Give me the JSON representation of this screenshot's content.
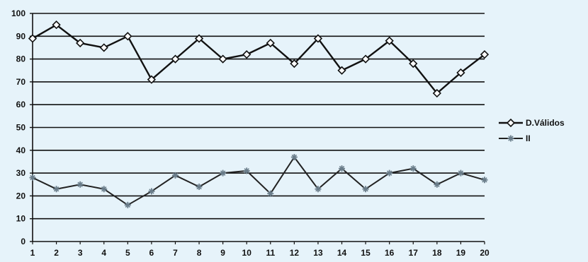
{
  "chart_data": {
    "type": "line",
    "x": [
      1,
      2,
      3,
      4,
      5,
      6,
      7,
      8,
      9,
      10,
      11,
      12,
      13,
      14,
      15,
      16,
      17,
      18,
      19,
      20
    ],
    "categories": [
      "1",
      "2",
      "3",
      "4",
      "5",
      "6",
      "7",
      "8",
      "9",
      "10",
      "11",
      "12",
      "13",
      "14",
      "15",
      "16",
      "17",
      "18",
      "19",
      "20"
    ],
    "series": [
      {
        "name": "D.Válidos",
        "values": [
          89,
          95,
          87,
          85,
          90,
          71,
          80,
          89,
          80,
          82,
          87,
          78,
          89,
          75,
          80,
          88,
          78,
          65,
          74,
          82
        ],
        "color": "#111111",
        "marker": "diamond"
      },
      {
        "name": "II",
        "values": [
          28,
          23,
          25,
          23,
          16,
          22,
          29,
          24,
          30,
          31,
          21,
          37,
          23,
          32,
          23,
          30,
          32,
          25,
          30,
          27
        ],
        "color": "#222222",
        "marker": "star"
      }
    ],
    "title": "",
    "xlabel": "",
    "ylabel": "",
    "ylim": [
      0,
      100
    ],
    "yticks": [
      "0",
      "10",
      "20",
      "30",
      "40",
      "50",
      "60",
      "70",
      "80",
      "90",
      "100"
    ],
    "grid": true,
    "legend": "right"
  }
}
